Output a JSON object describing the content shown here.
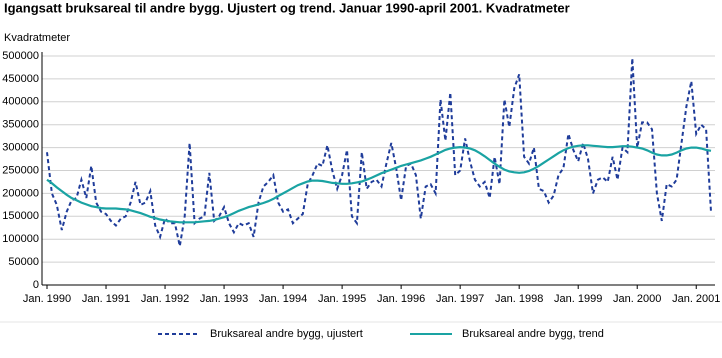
{
  "chart_data": {
    "type": "line",
    "title": "Igangsatt bruksareal til andre bygg. Ujustert og trend. Januar 1990-april 2001. Kvadratmeter",
    "y_label": "Kvadratmeter",
    "categories": [
      "Jan. 1990",
      null,
      null,
      null,
      null,
      null,
      null,
      null,
      null,
      null,
      null,
      null,
      "Jan. 1991",
      null,
      null,
      null,
      null,
      null,
      null,
      null,
      null,
      null,
      null,
      null,
      "Jan. 1992",
      null,
      null,
      null,
      null,
      null,
      null,
      null,
      null,
      null,
      null,
      null,
      "Jan. 1993",
      null,
      null,
      null,
      null,
      null,
      null,
      null,
      null,
      null,
      null,
      null,
      "Jan. 1994",
      null,
      null,
      null,
      null,
      null,
      null,
      null,
      null,
      null,
      null,
      null,
      "Jan. 1995",
      null,
      null,
      null,
      null,
      null,
      null,
      null,
      null,
      null,
      null,
      null,
      "Jan. 1996",
      null,
      null,
      null,
      null,
      null,
      null,
      null,
      null,
      null,
      null,
      null,
      "Jan. 1997",
      null,
      null,
      null,
      null,
      null,
      null,
      null,
      null,
      null,
      null,
      null,
      "Jan. 1998",
      null,
      null,
      null,
      null,
      null,
      null,
      null,
      null,
      null,
      null,
      null,
      "Jan. 1999",
      null,
      null,
      null,
      null,
      null,
      null,
      null,
      null,
      null,
      null,
      null,
      "Jan. 2000",
      null,
      null,
      null,
      null,
      null,
      null,
      null,
      null,
      null,
      null,
      null,
      "Jan. 2001",
      null,
      null,
      null
    ],
    "series": [
      {
        "name": "Bruksareal andre bygg, ujustert",
        "color": "#1f3c9a",
        "dash": true,
        "values": [
          290000,
          200000,
          175000,
          120000,
          160000,
          185000,
          190000,
          230000,
          190000,
          260000,
          180000,
          160000,
          155000,
          140000,
          130000,
          145000,
          150000,
          180000,
          225000,
          175000,
          180000,
          205000,
          130000,
          105000,
          145000,
          135000,
          135000,
          85000,
          150000,
          310000,
          135000,
          145000,
          150000,
          245000,
          140000,
          150000,
          170000,
          135000,
          115000,
          135000,
          130000,
          135000,
          105000,
          180000,
          215000,
          225000,
          240000,
          180000,
          160000,
          165000,
          135000,
          145000,
          155000,
          220000,
          240000,
          265000,
          260000,
          305000,
          250000,
          210000,
          240000,
          295000,
          150000,
          135000,
          290000,
          210000,
          225000,
          230000,
          215000,
          265000,
          310000,
          255000,
          185000,
          260000,
          265000,
          240000,
          145000,
          215000,
          220000,
          200000,
          405000,
          315000,
          420000,
          240000,
          250000,
          320000,
          270000,
          230000,
          215000,
          225000,
          190000,
          280000,
          220000,
          405000,
          345000,
          430000,
          460000,
          280000,
          265000,
          300000,
          210000,
          205000,
          180000,
          195000,
          240000,
          255000,
          330000,
          295000,
          270000,
          310000,
          275000,
          200000,
          230000,
          235000,
          225000,
          280000,
          230000,
          300000,
          290000,
          495000,
          300000,
          355000,
          355000,
          340000,
          200000,
          140000,
          220000,
          215000,
          230000,
          310000,
          390000,
          445000,
          330000,
          350000,
          340000,
          160000
        ]
      },
      {
        "name": "Bruksareal andre bygg, trend",
        "color": "#1aa3a3",
        "dash": false,
        "values": [
          230000,
          222000,
          213000,
          205000,
          197000,
          190000,
          185000,
          180000,
          176000,
          172000,
          170000,
          168000,
          167000,
          167000,
          167000,
          166000,
          165000,
          163000,
          160000,
          157000,
          153000,
          149000,
          146000,
          143000,
          141000,
          139000,
          138000,
          137000,
          137000,
          137000,
          137000,
          138000,
          139000,
          140000,
          142000,
          145000,
          148000,
          152000,
          157000,
          162000,
          166000,
          170000,
          173000,
          176000,
          179000,
          183000,
          188000,
          194000,
          200000,
          206000,
          212000,
          218000,
          222000,
          226000,
          228000,
          228000,
          227000,
          225000,
          223000,
          222000,
          221000,
          221000,
          222000,
          224000,
          226000,
          230000,
          234000,
          239000,
          244000,
          248000,
          252000,
          256000,
          260000,
          263000,
          266000,
          269000,
          272000,
          276000,
          280000,
          285000,
          290000,
          295000,
          298000,
          300000,
          301000,
          300000,
          298000,
          294000,
          288000,
          281000,
          273000,
          265000,
          258000,
          252000,
          248000,
          246000,
          245000,
          246000,
          249000,
          254000,
          260000,
          267000,
          274000,
          281000,
          288000,
          294000,
          299000,
          302000,
          304000,
          305000,
          305000,
          304000,
          303000,
          302000,
          301000,
          301000,
          302000,
          303000,
          303000,
          302000,
          300000,
          298000,
          294000,
          289000,
          285000,
          283000,
          283000,
          285000,
          289000,
          294000,
          298000,
          300000,
          300000,
          298000,
          295000,
          293000
        ]
      }
    ],
    "ylim": [
      0,
      500000
    ],
    "yticks": [
      0,
      50000,
      100000,
      150000,
      200000,
      250000,
      300000,
      350000,
      400000,
      450000,
      500000
    ],
    "grid": true
  }
}
